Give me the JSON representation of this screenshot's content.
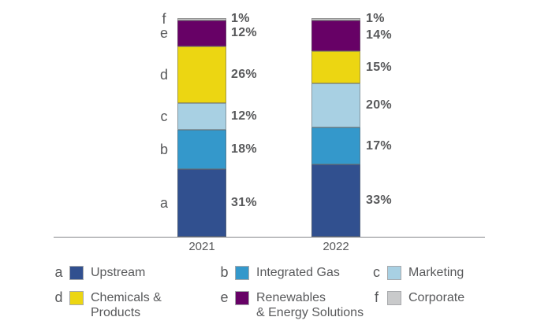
{
  "chart_data": {
    "type": "bar",
    "stacked": true,
    "categories": [
      "2021",
      "2022"
    ],
    "value_suffix": "%",
    "ylim": [
      0,
      100
    ],
    "grid": false,
    "legend_position": "bottom",
    "segments": [
      {
        "key": "a",
        "label": "Upstream",
        "color": "#31508F",
        "values": [
          31,
          33
        ]
      },
      {
        "key": "b",
        "label": "Integrated Gas",
        "color": "#3498CB",
        "values": [
          18,
          17
        ]
      },
      {
        "key": "c",
        "label": "Marketing",
        "color": "#A8D0E3",
        "values": [
          12,
          20
        ]
      },
      {
        "key": "d",
        "label": "Chemicals & Products",
        "color": "#ECD612",
        "values": [
          26,
          15
        ]
      },
      {
        "key": "e",
        "label": "Renewables & Energy Solutions",
        "color": "#670166",
        "values": [
          12,
          14
        ]
      },
      {
        "key": "f",
        "label": "Corporate",
        "color": "#C9CACB",
        "values": [
          1,
          1
        ]
      }
    ]
  },
  "legend": {
    "items": [
      {
        "key": "a",
        "lines": [
          "Upstream"
        ]
      },
      {
        "key": "b",
        "lines": [
          "Integrated Gas"
        ]
      },
      {
        "key": "c",
        "lines": [
          "Marketing"
        ]
      },
      {
        "key": "d",
        "lines": [
          "Chemicals &",
          "Products"
        ]
      },
      {
        "key": "e",
        "lines": [
          "Renewables",
          "& Energy Solutions"
        ]
      },
      {
        "key": "f",
        "lines": [
          "Corporate"
        ]
      }
    ]
  }
}
